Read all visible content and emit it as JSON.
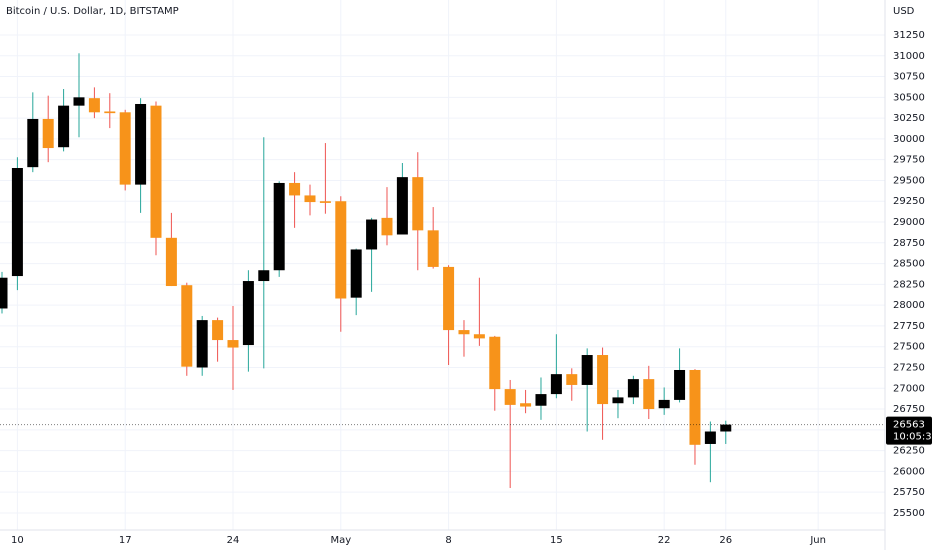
{
  "chart_data": {
    "type": "candlestick",
    "title": "Bitcoin / U.S. Dollar, 1D, BITSTAMP",
    "currency": "USD",
    "open": [
      27960,
      28350,
      29660,
      30240,
      29900,
      30400,
      30490,
      30330,
      30320,
      29450,
      30400,
      28810,
      28240,
      27250,
      27820,
      27580,
      27520,
      28290,
      28420,
      29470,
      29320,
      29250,
      29250,
      28090,
      28670,
      29050,
      28850,
      29540,
      28900,
      28460,
      27700,
      27650,
      27620,
      26990,
      26820,
      26790,
      26930,
      27170,
      27040,
      27400,
      26820,
      26890,
      27110,
      26760,
      26860,
      27220,
      26330,
      26480
    ],
    "high": [
      28400,
      29780,
      30560,
      30520,
      30600,
      31030,
      30620,
      30550,
      30350,
      30490,
      30450,
      29110,
      28270,
      27870,
      27850,
      27990,
      28420,
      30020,
      29490,
      29600,
      29450,
      29950,
      29310,
      28680,
      29050,
      29420,
      29710,
      29840,
      29180,
      28480,
      27820,
      28330,
      27630,
      27100,
      26980,
      27130,
      27650,
      27240,
      27480,
      27490,
      26980,
      27150,
      27270,
      27010,
      27480,
      27230,
      26600,
      26610
    ],
    "low": [
      27900,
      28180,
      29600,
      29720,
      29850,
      30020,
      30250,
      30130,
      29380,
      29110,
      28600,
      28230,
      27150,
      27150,
      27320,
      26980,
      27200,
      27240,
      28340,
      28930,
      29080,
      29100,
      27680,
      27880,
      28160,
      28720,
      28850,
      28420,
      28440,
      27280,
      27380,
      27510,
      26730,
      25800,
      26700,
      26620,
      26880,
      26850,
      26480,
      26380,
      26640,
      26810,
      26630,
      26680,
      26830,
      26080,
      25870,
      26330
    ],
    "close": [
      28330,
      29650,
      30240,
      29890,
      30400,
      30500,
      30320,
      30310,
      29450,
      30420,
      28810,
      28230,
      27260,
      27820,
      27580,
      27490,
      28290,
      28420,
      29470,
      29320,
      29240,
      29230,
      28080,
      28670,
      29030,
      28840,
      29540,
      28900,
      28460,
      27700,
      27650,
      27600,
      26990,
      26800,
      26780,
      26930,
      27170,
      27040,
      27400,
      26810,
      26890,
      27110,
      26750,
      26860,
      27220,
      26320,
      26480,
      26563
    ],
    "up_color": "#000000",
    "down_color": "#f7931a",
    "up_wick_color": "#26a69a",
    "down_wick_color": "#ef5350",
    "xlim": [
      -0.13,
      57.34
    ],
    "xticks": [
      {
        "value": 1,
        "label": "10"
      },
      {
        "value": 8,
        "label": "17"
      },
      {
        "value": 15,
        "label": "24"
      },
      {
        "value": 22,
        "label": "May"
      },
      {
        "value": 29,
        "label": "8"
      },
      {
        "value": 36,
        "label": "15"
      },
      {
        "value": 43,
        "label": "22"
      },
      {
        "value": 47,
        "label": "26"
      },
      {
        "value": 53,
        "label": "Jun"
      }
    ],
    "ylim": [
      25295,
      31671
    ],
    "yticks": [
      25500,
      25750,
      26000,
      26250,
      26500,
      26750,
      27000,
      27250,
      27500,
      27750,
      28000,
      28250,
      28500,
      28750,
      29000,
      29250,
      29500,
      29750,
      30000,
      30250,
      30500,
      30750,
      31000,
      31250
    ],
    "grid": true,
    "last_price": 26563,
    "countdown": "10:05:31"
  }
}
